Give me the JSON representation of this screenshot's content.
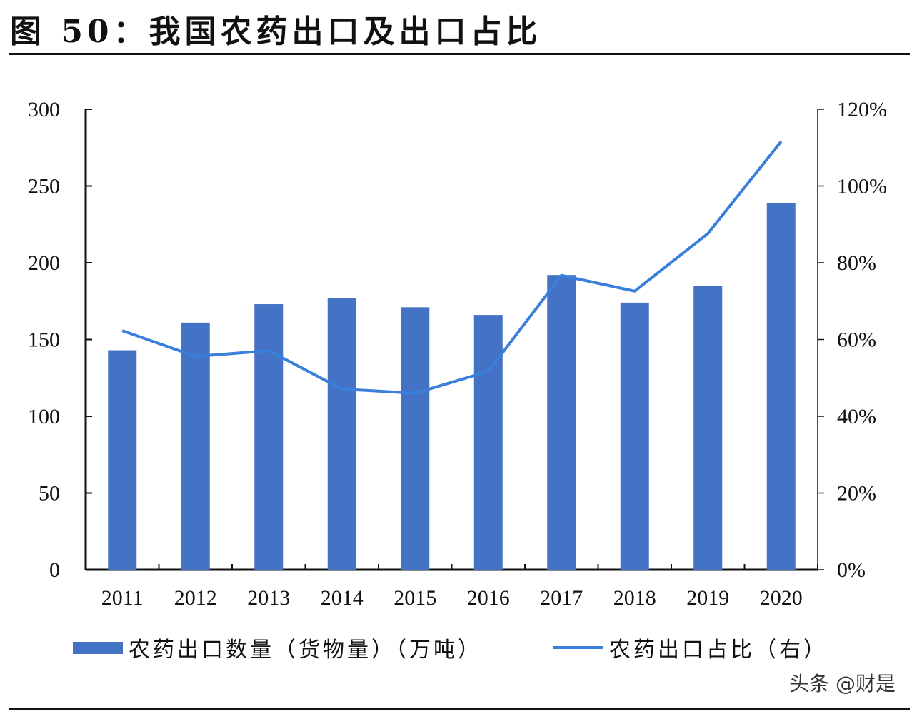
{
  "title": "图 50：我国农药出口及出口占比",
  "watermark": "头条 @财是",
  "chart_data": {
    "type": "bar+line",
    "categories": [
      "2011",
      "2012",
      "2013",
      "2014",
      "2015",
      "2016",
      "2017",
      "2018",
      "2019",
      "2020"
    ],
    "series": [
      {
        "name": "农药出口数量（货物量）（万吨）",
        "type": "bar",
        "axis": "left",
        "color": "#4472C4",
        "values": [
          143,
          161,
          173,
          177,
          171,
          166,
          192,
          174,
          185,
          239
        ]
      },
      {
        "name": "农药出口占比（右）",
        "type": "line",
        "axis": "right",
        "color": "#3A7FDB",
        "values": [
          62.3,
          55.6,
          57.1,
          47.1,
          46.0,
          51.7,
          76.7,
          72.6,
          87.6,
          111.6
        ]
      }
    ],
    "left_axis": {
      "ylim": [
        0,
        300
      ],
      "ticks": [
        "0",
        "50",
        "100",
        "150",
        "200",
        "250",
        "300"
      ]
    },
    "right_axis": {
      "ylim": [
        0,
        120
      ],
      "ticks": [
        "0%",
        "20%",
        "40%",
        "60%",
        "80%",
        "100%",
        "120%"
      ]
    },
    "grid": false,
    "legend_placement": "bottom"
  }
}
